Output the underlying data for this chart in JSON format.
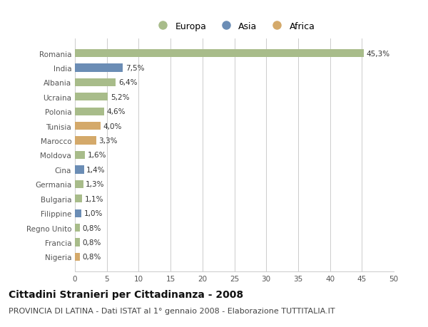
{
  "countries": [
    "Romania",
    "India",
    "Albania",
    "Ucraina",
    "Polonia",
    "Tunisia",
    "Marocco",
    "Moldova",
    "Cina",
    "Germania",
    "Bulgaria",
    "Filippine",
    "Regno Unito",
    "Francia",
    "Nigeria"
  ],
  "values": [
    45.3,
    7.5,
    6.4,
    5.2,
    4.6,
    4.0,
    3.3,
    1.6,
    1.4,
    1.3,
    1.1,
    1.0,
    0.8,
    0.8,
    0.8
  ],
  "labels": [
    "45,3%",
    "7,5%",
    "6,4%",
    "5,2%",
    "4,6%",
    "4,0%",
    "3,3%",
    "1,6%",
    "1,4%",
    "1,3%",
    "1,1%",
    "1,0%",
    "0,8%",
    "0,8%",
    "0,8%"
  ],
  "continents": [
    "Europa",
    "Asia",
    "Europa",
    "Europa",
    "Europa",
    "Africa",
    "Africa",
    "Europa",
    "Asia",
    "Europa",
    "Europa",
    "Asia",
    "Europa",
    "Europa",
    "Africa"
  ],
  "colors": {
    "Europa": "#a8bc8a",
    "Asia": "#6b8db5",
    "Africa": "#d4a96a"
  },
  "title": "Cittadini Stranieri per Cittadinanza - 2008",
  "subtitle": "PROVINCIA DI LATINA - Dati ISTAT al 1° gennaio 2008 - Elaborazione TUTTITALIA.IT",
  "xlim": [
    0,
    50
  ],
  "xticks": [
    0,
    5,
    10,
    15,
    20,
    25,
    30,
    35,
    40,
    45,
    50
  ],
  "background_color": "#ffffff",
  "grid_color": "#cccccc",
  "title_fontsize": 10,
  "subtitle_fontsize": 8,
  "label_fontsize": 7.5,
  "tick_fontsize": 7.5,
  "legend_fontsize": 9
}
